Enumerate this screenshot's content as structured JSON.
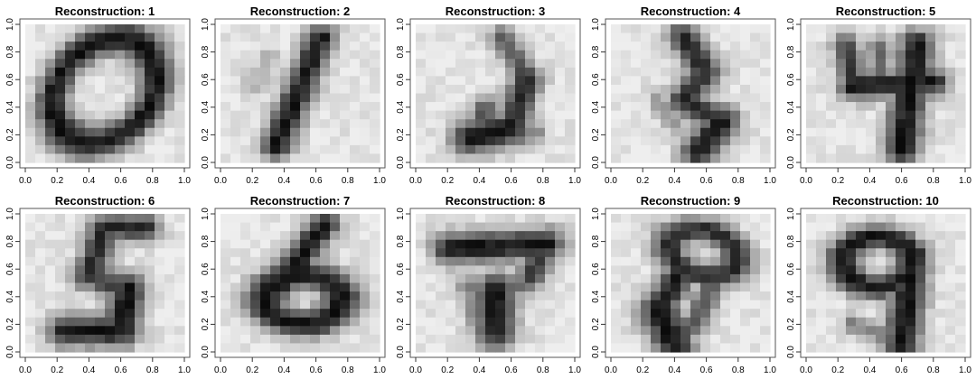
{
  "chart_data": {
    "type": "heatmap",
    "grid_size": 16,
    "xlim": [
      0,
      1
    ],
    "ylim": [
      0,
      1
    ],
    "xticks": [
      "0.0",
      "0.2",
      "0.4",
      "0.6",
      "0.8",
      "1.0"
    ],
    "yticks": [
      "0.0",
      "0.2",
      "0.4",
      "0.6",
      "0.8",
      "1.0"
    ],
    "colormap": "grayscale (dark = high)",
    "grid": false,
    "panels": [
      {
        "title": "Reconstruction: 1",
        "digit": "0",
        "strokes": [
          {
            "type": "ellipse",
            "cx": 0.5,
            "cy": 0.52,
            "rx": 0.3,
            "ry": 0.4,
            "rot": -30,
            "w": 0.08,
            "int": 1.0
          }
        ]
      },
      {
        "title": "Reconstruction: 2",
        "digit": "1",
        "strokes": [
          {
            "type": "line",
            "x1": 0.63,
            "y1": 0.9,
            "x2": 0.35,
            "y2": 0.12,
            "w": 0.07,
            "int": 1.0
          },
          {
            "type": "line",
            "x1": 0.2,
            "y1": 0.55,
            "x2": 0.3,
            "y2": 0.75,
            "w": 0.05,
            "int": 0.25
          }
        ]
      },
      {
        "title": "Reconstruction: 3",
        "digit": "2",
        "strokes": [
          {
            "type": "line",
            "x1": 0.55,
            "y1": 0.9,
            "x2": 0.7,
            "y2": 0.6,
            "w": 0.06,
            "int": 0.7
          },
          {
            "type": "line",
            "x1": 0.7,
            "y1": 0.6,
            "x2": 0.6,
            "y2": 0.25,
            "w": 0.07,
            "int": 0.9
          },
          {
            "type": "line",
            "x1": 0.6,
            "y1": 0.25,
            "x2": 0.35,
            "y2": 0.18,
            "w": 0.09,
            "int": 1.0
          },
          {
            "type": "line",
            "x1": 0.35,
            "y1": 0.18,
            "x2": 0.45,
            "y2": 0.4,
            "w": 0.06,
            "int": 0.7
          },
          {
            "type": "line",
            "x1": 0.6,
            "y1": 0.25,
            "x2": 0.75,
            "y2": 0.2,
            "w": 0.05,
            "int": 0.5
          }
        ]
      },
      {
        "title": "Reconstruction: 4",
        "digit": "8",
        "strokes": [
          {
            "type": "line",
            "x1": 0.45,
            "y1": 0.92,
            "x2": 0.6,
            "y2": 0.65,
            "w": 0.07,
            "int": 0.9
          },
          {
            "type": "line",
            "x1": 0.6,
            "y1": 0.65,
            "x2": 0.45,
            "y2": 0.45,
            "w": 0.07,
            "int": 0.9
          },
          {
            "type": "line",
            "x1": 0.45,
            "y1": 0.45,
            "x2": 0.7,
            "y2": 0.3,
            "w": 0.07,
            "int": 0.9
          },
          {
            "type": "line",
            "x1": 0.7,
            "y1": 0.3,
            "x2": 0.55,
            "y2": 0.08,
            "w": 0.08,
            "int": 1.0
          },
          {
            "type": "line",
            "x1": 0.3,
            "y1": 0.45,
            "x2": 0.4,
            "y2": 0.28,
            "w": 0.05,
            "int": 0.4
          }
        ]
      },
      {
        "title": "Reconstruction: 5",
        "digit": "4",
        "strokes": [
          {
            "type": "line",
            "x1": 0.25,
            "y1": 0.85,
            "x2": 0.3,
            "y2": 0.55,
            "w": 0.06,
            "int": 0.8
          },
          {
            "type": "line",
            "x1": 0.3,
            "y1": 0.55,
            "x2": 0.8,
            "y2": 0.58,
            "w": 0.07,
            "int": 1.0
          },
          {
            "type": "line",
            "x1": 0.7,
            "y1": 0.85,
            "x2": 0.6,
            "y2": 0.1,
            "w": 0.08,
            "int": 1.0
          },
          {
            "type": "line",
            "x1": 0.45,
            "y1": 0.85,
            "x2": 0.5,
            "y2": 0.55,
            "w": 0.05,
            "int": 0.6
          }
        ]
      },
      {
        "title": "Reconstruction: 6",
        "digit": "5",
        "strokes": [
          {
            "type": "line",
            "x1": 0.5,
            "y1": 0.9,
            "x2": 0.75,
            "y2": 0.9,
            "w": 0.07,
            "int": 0.9
          },
          {
            "type": "line",
            "x1": 0.5,
            "y1": 0.9,
            "x2": 0.4,
            "y2": 0.55,
            "w": 0.07,
            "int": 0.9
          },
          {
            "type": "line",
            "x1": 0.4,
            "y1": 0.55,
            "x2": 0.65,
            "y2": 0.45,
            "w": 0.07,
            "int": 0.8
          },
          {
            "type": "line",
            "x1": 0.65,
            "y1": 0.45,
            "x2": 0.6,
            "y2": 0.15,
            "w": 0.08,
            "int": 1.0
          },
          {
            "type": "line",
            "x1": 0.6,
            "y1": 0.15,
            "x2": 0.25,
            "y2": 0.15,
            "w": 0.08,
            "int": 1.0
          }
        ]
      },
      {
        "title": "Reconstruction: 7",
        "digit": "6",
        "strokes": [
          {
            "type": "line",
            "x1": 0.65,
            "y1": 0.92,
            "x2": 0.35,
            "y2": 0.45,
            "w": 0.07,
            "int": 1.0
          },
          {
            "type": "ellipse",
            "cx": 0.52,
            "cy": 0.38,
            "rx": 0.24,
            "ry": 0.18,
            "rot": 0,
            "w": 0.08,
            "int": 1.0
          }
        ]
      },
      {
        "title": "Reconstruction: 8",
        "digit": "7",
        "strokes": [
          {
            "type": "line",
            "x1": 0.22,
            "y1": 0.75,
            "x2": 0.82,
            "y2": 0.78,
            "w": 0.08,
            "int": 1.0
          },
          {
            "type": "line",
            "x1": 0.82,
            "y1": 0.78,
            "x2": 0.72,
            "y2": 0.55,
            "w": 0.07,
            "int": 0.8
          },
          {
            "type": "line",
            "x1": 0.35,
            "y1": 0.45,
            "x2": 0.7,
            "y2": 0.5,
            "w": 0.06,
            "int": 0.6
          },
          {
            "type": "line",
            "x1": 0.5,
            "y1": 0.45,
            "x2": 0.5,
            "y2": 0.15,
            "w": 0.09,
            "int": 1.0
          },
          {
            "type": "line",
            "x1": 0.35,
            "y1": 0.35,
            "x2": 0.45,
            "y2": 0.1,
            "w": 0.05,
            "int": 0.5
          }
        ]
      },
      {
        "title": "Reconstruction: 9",
        "digit": "8",
        "strokes": [
          {
            "type": "ellipse",
            "cx": 0.58,
            "cy": 0.72,
            "rx": 0.22,
            "ry": 0.16,
            "rot": -20,
            "w": 0.07,
            "int": 0.9
          },
          {
            "type": "line",
            "x1": 0.45,
            "y1": 0.6,
            "x2": 0.3,
            "y2": 0.3,
            "w": 0.07,
            "int": 1.0
          },
          {
            "type": "line",
            "x1": 0.3,
            "y1": 0.3,
            "x2": 0.4,
            "y2": 0.05,
            "w": 0.09,
            "int": 1.0
          },
          {
            "type": "line",
            "x1": 0.4,
            "y1": 0.05,
            "x2": 0.55,
            "y2": 0.25,
            "w": 0.06,
            "int": 0.7
          },
          {
            "type": "line",
            "x1": 0.55,
            "y1": 0.25,
            "x2": 0.65,
            "y2": 0.55,
            "w": 0.06,
            "int": 0.7
          }
        ]
      },
      {
        "title": "Reconstruction: 10",
        "digit": "9",
        "strokes": [
          {
            "type": "ellipse",
            "cx": 0.45,
            "cy": 0.65,
            "rx": 0.22,
            "ry": 0.18,
            "rot": 0,
            "w": 0.07,
            "int": 1.0
          },
          {
            "type": "line",
            "x1": 0.67,
            "y1": 0.7,
            "x2": 0.6,
            "y2": 0.05,
            "w": 0.08,
            "int": 1.0
          },
          {
            "type": "line",
            "x1": 0.3,
            "y1": 0.2,
            "x2": 0.5,
            "y2": 0.1,
            "w": 0.05,
            "int": 0.5
          }
        ]
      }
    ]
  }
}
